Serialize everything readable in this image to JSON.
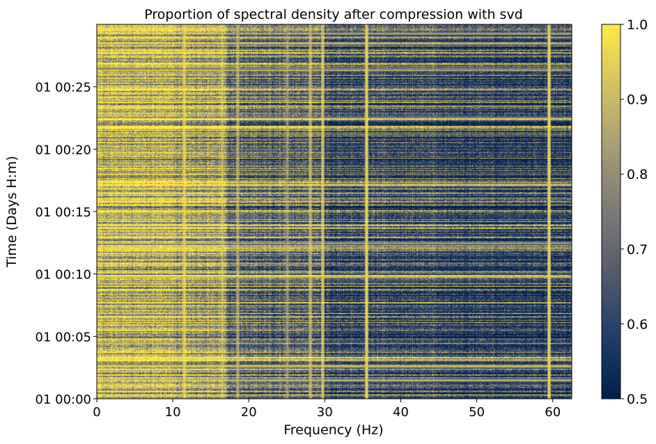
{
  "chart_data": {
    "type": "heatmap",
    "title": "Proportion of spectral density after compression with svd",
    "xlabel": "Frequency (Hz)",
    "ylabel": "Time (Days H:m)",
    "xlim": [
      0,
      62.5
    ],
    "ylim_minutes": [
      0,
      30
    ],
    "x_ticks": [
      {
        "value": 0,
        "label": "0"
      },
      {
        "value": 10,
        "label": "10"
      },
      {
        "value": 20,
        "label": "20"
      },
      {
        "value": 30,
        "label": "30"
      },
      {
        "value": 40,
        "label": "40"
      },
      {
        "value": 50,
        "label": "50"
      },
      {
        "value": 60,
        "label": "60"
      }
    ],
    "y_ticks": [
      {
        "value": 0,
        "label": "01 00:00"
      },
      {
        "value": 5,
        "label": "01 00:05"
      },
      {
        "value": 10,
        "label": "01 00:10"
      },
      {
        "value": 15,
        "label": "01 00:15"
      },
      {
        "value": 20,
        "label": "01 00:20"
      },
      {
        "value": 25,
        "label": "01 00:25"
      }
    ],
    "colorbar": {
      "colormap": "cividis",
      "range": [
        0.5,
        1.0
      ],
      "ticks": [
        {
          "value": 0.5,
          "label": "0.5"
        },
        {
          "value": 0.6,
          "label": "0.6"
        },
        {
          "value": 0.7,
          "label": "0.7"
        },
        {
          "value": 0.8,
          "label": "0.8"
        },
        {
          "value": 0.9,
          "label": "0.9"
        },
        {
          "value": 1.0,
          "label": "1.0"
        }
      ],
      "stops": [
        "#00204c",
        "#213d6b",
        "#555b6c",
        "#7b7a77",
        "#a59c74",
        "#d3c164",
        "#ffe945"
      ]
    },
    "background_level_by_frequency": [
      {
        "range": [
          0,
          10
        ],
        "value": 0.84
      },
      {
        "range": [
          10,
          17
        ],
        "value": 0.8
      },
      {
        "range": [
          17,
          30
        ],
        "value": 0.66
      },
      {
        "range": [
          30,
          45
        ],
        "value": 0.58
      },
      {
        "range": [
          45,
          62.5
        ],
        "value": 0.54
      }
    ],
    "vertical_lines_hz": [
      {
        "freq": 11.5,
        "value": 0.98
      },
      {
        "freq": 16.5,
        "value": 0.88
      },
      {
        "freq": 18.5,
        "value": 0.9
      },
      {
        "freq": 25.0,
        "value": 0.85
      },
      {
        "freq": 28.0,
        "value": 0.92
      },
      {
        "freq": 29.7,
        "value": 0.95
      },
      {
        "freq": 35.5,
        "value": 1.0
      },
      {
        "freq": 59.5,
        "value": 1.0
      }
    ],
    "horizontal_bands_minutes": [
      {
        "time": 1.5,
        "value": 0.96
      },
      {
        "time": 2.6,
        "value": 0.98
      },
      {
        "time": 9.8,
        "value": 0.98
      },
      {
        "time": 12.5,
        "value": 0.9
      },
      {
        "time": 17.2,
        "value": 0.97
      },
      {
        "time": 22.5,
        "value": 0.97
      },
      {
        "time": 26.4,
        "value": 0.9
      },
      {
        "time": 28.5,
        "value": 0.94
      },
      {
        "time": 29.3,
        "value": 0.92
      }
    ]
  }
}
